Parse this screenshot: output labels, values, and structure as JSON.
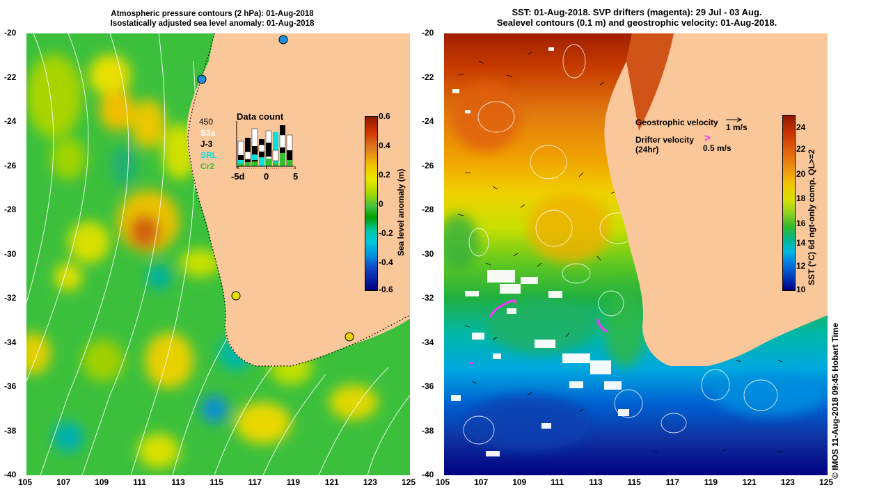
{
  "left_panel": {
    "title_line1": "Atmospheric pressure contours (2 hPa): 01-Aug-2018",
    "title_line2": "Isostatically adjusted sea level anomaly: 01-Aug-2018",
    "colorbar_title": "Sea level anomaly (m)",
    "colorbar_ticks": [
      "0.6",
      "0.4",
      "0.2",
      "0",
      "-0.2",
      "-0.4",
      "-0.6"
    ],
    "inset": {
      "title": "Data count",
      "max_label": "450",
      "series": [
        {
          "name": "S3a",
          "color": "#ffffff"
        },
        {
          "name": "J-3",
          "color": "#000000"
        },
        {
          "name": "SRL",
          "color": "#00e0e0"
        },
        {
          "name": "Cr2",
          "color": "#30c030"
        }
      ],
      "x_ticks": [
        "-5d",
        "0",
        "5"
      ]
    }
  },
  "right_panel": {
    "title_line1": "SST: 01-Aug-2018. SVP drifters (magenta): 29 Jul - 03 Aug.",
    "title_line2": "Sealevel contours (0.1 m) and geostrophic velocity: 01-Aug-2018.",
    "colorbar_title": "SST (°C) 6d ngt-only comp. QL>=2",
    "colorbar_ticks": [
      "24",
      "22",
      "20",
      "18",
      "16",
      "14",
      "12",
      "10"
    ],
    "geostrophic_label": "Geostrophic velocity",
    "geostrophic_scale": "1 m/s",
    "drifter_label": "Drifter velocity",
    "drifter_sub": "(24hr)",
    "drifter_scale": "0.5 m/s",
    "credit": "© IMOS 11-Aug-2018 09:45 Hobart Time"
  },
  "axes": {
    "y_ticks": [
      "-20",
      "-22",
      "-24",
      "-26",
      "-28",
      "-30",
      "-32",
      "-34",
      "-36",
      "-38",
      "-40"
    ],
    "x_ticks": [
      "105",
      "107",
      "109",
      "111",
      "113",
      "115",
      "117",
      "119",
      "121",
      "123",
      "125"
    ]
  },
  "colors": {
    "land": "#fac79a",
    "sea_green": "#3cc03c",
    "drifter": "#ff30ff"
  }
}
